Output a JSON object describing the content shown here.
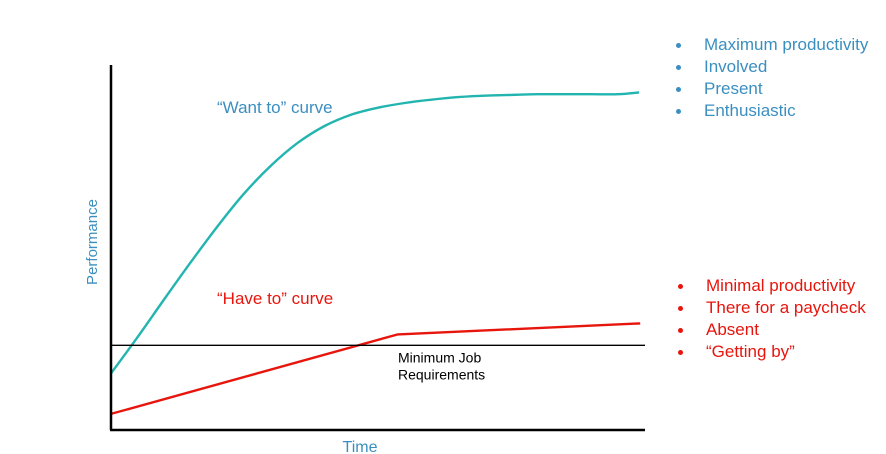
{
  "chart_data": {
    "type": "line",
    "xlabel": "Time",
    "ylabel": "Performance",
    "xlim": [
      0,
      100
    ],
    "ylim": [
      0,
      100
    ],
    "grid": false,
    "series": [
      {
        "name": "“Want to” curve",
        "color": "#22b5b0",
        "x": [
          0,
          5,
          10,
          15,
          20,
          25,
          30,
          35,
          40,
          45,
          50,
          55,
          60,
          65,
          70,
          75,
          80,
          85,
          90,
          95,
          98.9
        ],
        "y": [
          15.5,
          25.5,
          35.9,
          46.1,
          55.9,
          64.9,
          72.5,
          78.7,
          83.3,
          86.4,
          88.3,
          89.6,
          90.5,
          91.2,
          91.6,
          91.8,
          92.0,
          92.0,
          92.0,
          92.0,
          92.5
        ]
      },
      {
        "name": "“Have to” curve",
        "color": "#e8150d",
        "x": [
          0,
          53.7,
          99.1
        ],
        "y": [
          4.4,
          26.2,
          29.2
        ]
      }
    ],
    "reference_line": {
      "y": 23.2,
      "color": "#000000",
      "label_lines": [
        "Minimum Job",
        "Requirements"
      ]
    },
    "annotations": {
      "want_label": "“Want to” curve",
      "have_label": "“Have to” curve"
    }
  },
  "want_list": {
    "color": "#3b8fc0",
    "items": [
      "Maximum productivity",
      "Involved",
      "Present",
      "Enthusiastic"
    ]
  },
  "have_list": {
    "color": "#e8150d",
    "items": [
      "Minimal productivity",
      "There for a paycheck",
      "Absent",
      "“Getting by”"
    ]
  }
}
